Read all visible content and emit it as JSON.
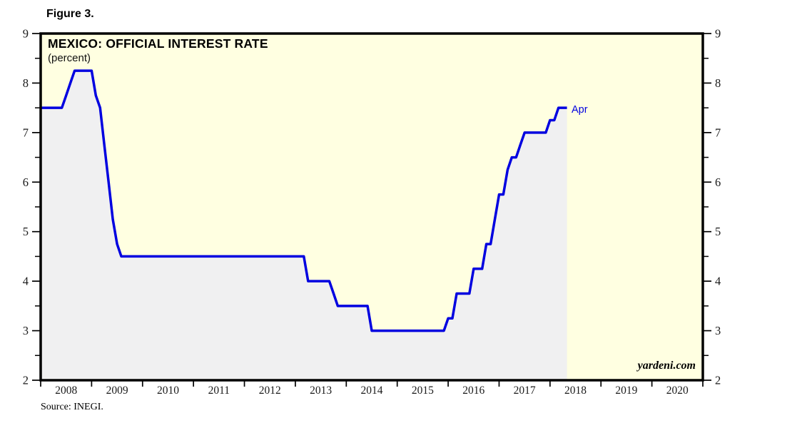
{
  "chart_data": {
    "type": "area",
    "figure_label": "Figure 3.",
    "title": "MEXICO: OFFICIAL INTEREST RATE",
    "subtitle": "(percent)",
    "source": "Source: INEGI.",
    "watermark": "yardeni.com",
    "end_point_label": "Apr",
    "x_tick_years": [
      "2008",
      "2009",
      "2010",
      "2011",
      "2012",
      "2013",
      "2014",
      "2015",
      "2016",
      "2017",
      "2018",
      "2019",
      "2020"
    ],
    "xlim_years": [
      2008,
      2021
    ],
    "ylim": [
      2,
      9
    ],
    "y_ticks": [
      2,
      3,
      4,
      5,
      6,
      7,
      8,
      9
    ],
    "y_minor_tick_step": 0.5,
    "grid": "off",
    "legend": "none",
    "series": [
      {
        "name": "Mexico official interest rate",
        "frequency": "monthly",
        "start": "2008-01",
        "end": "2018-04",
        "end_value": 7.5,
        "values": [
          7.5,
          7.5,
          7.5,
          7.5,
          7.5,
          7.75,
          8.0,
          8.25,
          8.25,
          8.25,
          8.25,
          8.25,
          7.75,
          7.5,
          6.75,
          6.0,
          5.25,
          4.75,
          4.5,
          4.5,
          4.5,
          4.5,
          4.5,
          4.5,
          4.5,
          4.5,
          4.5,
          4.5,
          4.5,
          4.5,
          4.5,
          4.5,
          4.5,
          4.5,
          4.5,
          4.5,
          4.5,
          4.5,
          4.5,
          4.5,
          4.5,
          4.5,
          4.5,
          4.5,
          4.5,
          4.5,
          4.5,
          4.5,
          4.5,
          4.5,
          4.5,
          4.5,
          4.5,
          4.5,
          4.5,
          4.5,
          4.5,
          4.5,
          4.5,
          4.5,
          4.5,
          4.5,
          4.0,
          4.0,
          4.0,
          4.0,
          4.0,
          4.0,
          3.75,
          3.5,
          3.5,
          3.5,
          3.5,
          3.5,
          3.5,
          3.5,
          3.5,
          3.0,
          3.0,
          3.0,
          3.0,
          3.0,
          3.0,
          3.0,
          3.0,
          3.0,
          3.0,
          3.0,
          3.0,
          3.0,
          3.0,
          3.0,
          3.0,
          3.0,
          3.0,
          3.25,
          3.25,
          3.75,
          3.75,
          3.75,
          3.75,
          4.25,
          4.25,
          4.25,
          4.75,
          4.75,
          5.25,
          5.75,
          5.75,
          6.25,
          6.5,
          6.5,
          6.75,
          7.0,
          7.0,
          7.0,
          7.0,
          7.0,
          7.0,
          7.25,
          7.25,
          7.5,
          7.5,
          7.5
        ]
      }
    ],
    "colors": {
      "line": "#0000e0",
      "area_fill": "#f0f0f1",
      "plot_background": "#ffffe1",
      "frame": "#000000",
      "tick": "#000000",
      "axis_text": "#1a1a1a",
      "annotation_text": "#0000e0"
    }
  }
}
